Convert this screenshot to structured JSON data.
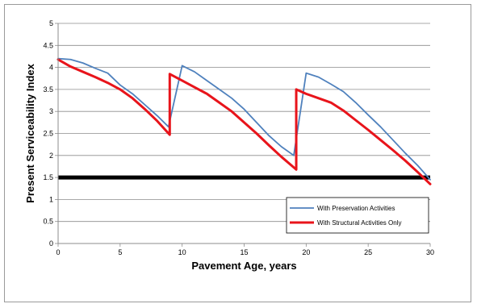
{
  "chart_data": {
    "type": "line",
    "xlabel": "Pavement Age, years",
    "ylabel": "Present Serviceability Index",
    "xlim": [
      0,
      30
    ],
    "ylim": [
      0,
      5
    ],
    "xticks": [
      0,
      5,
      10,
      15,
      20,
      25,
      30
    ],
    "yticks": [
      0,
      0.5,
      1,
      1.5,
      2,
      2.5,
      3,
      3.5,
      4,
      4.5,
      5
    ],
    "grid": "horizontal",
    "legend_position": "bottom-right",
    "threshold": {
      "y": 1.5,
      "color": "#000000"
    },
    "series": [
      {
        "name": "With Preservation Activities",
        "color": "#4f81bd",
        "points": [
          [
            0,
            4.2
          ],
          [
            1,
            4.18
          ],
          [
            2,
            4.1
          ],
          [
            3,
            3.98
          ],
          [
            4,
            3.87
          ],
          [
            5,
            3.6
          ],
          [
            6,
            3.4
          ],
          [
            7,
            3.15
          ],
          [
            8,
            2.9
          ],
          [
            8.9,
            2.65
          ],
          [
            10,
            4.04
          ],
          [
            11,
            3.9
          ],
          [
            12,
            3.7
          ],
          [
            13,
            3.5
          ],
          [
            14,
            3.3
          ],
          [
            15,
            3.05
          ],
          [
            16,
            2.75
          ],
          [
            17,
            2.45
          ],
          [
            18,
            2.2
          ],
          [
            19,
            2.0
          ],
          [
            20,
            3.87
          ],
          [
            21,
            3.78
          ],
          [
            22,
            3.62
          ],
          [
            23,
            3.45
          ],
          [
            24,
            3.2
          ],
          [
            25,
            2.92
          ],
          [
            26,
            2.65
          ],
          [
            27,
            2.35
          ],
          [
            28,
            2.05
          ],
          [
            29,
            1.77
          ],
          [
            30,
            1.45
          ]
        ]
      },
      {
        "name": "With Structural Activities Only",
        "color": "#e8141b",
        "points": [
          [
            0,
            4.18
          ],
          [
            1,
            4.02
          ],
          [
            2,
            3.9
          ],
          [
            3,
            3.78
          ],
          [
            4,
            3.65
          ],
          [
            5,
            3.5
          ],
          [
            6,
            3.3
          ],
          [
            7,
            3.05
          ],
          [
            8,
            2.78
          ],
          [
            9,
            2.47
          ],
          [
            9,
            3.85
          ],
          [
            10,
            3.7
          ],
          [
            11,
            3.55
          ],
          [
            12,
            3.4
          ],
          [
            13,
            3.2
          ],
          [
            14,
            3.0
          ],
          [
            15,
            2.75
          ],
          [
            16,
            2.5
          ],
          [
            17,
            2.23
          ],
          [
            18,
            1.97
          ],
          [
            19.2,
            1.68
          ],
          [
            19.2,
            3.5
          ],
          [
            20,
            3.4
          ],
          [
            21,
            3.3
          ],
          [
            22,
            3.2
          ],
          [
            23,
            3.02
          ],
          [
            24,
            2.8
          ],
          [
            25,
            2.58
          ],
          [
            26,
            2.35
          ],
          [
            27,
            2.12
          ],
          [
            28,
            1.88
          ],
          [
            29,
            1.62
          ],
          [
            30,
            1.35
          ]
        ]
      }
    ]
  }
}
